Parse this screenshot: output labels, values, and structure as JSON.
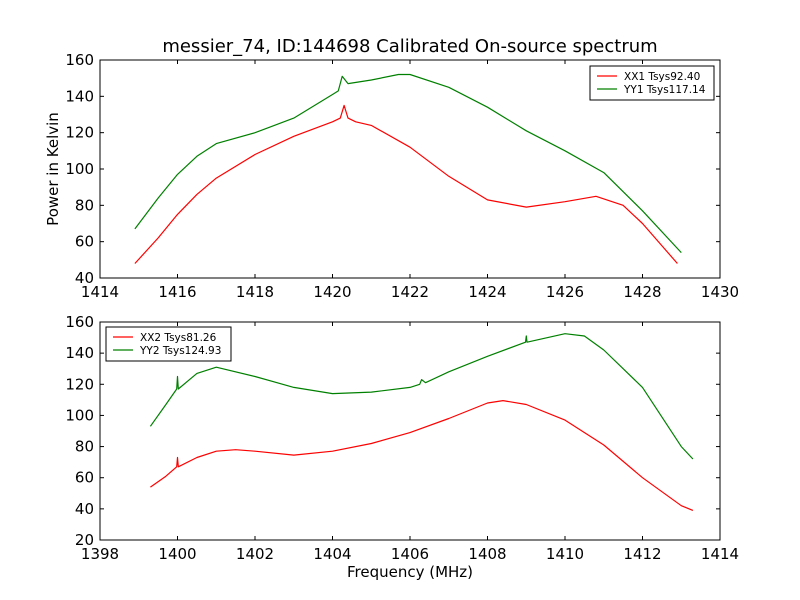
{
  "chart_data": [
    {
      "type": "line",
      "title": "messier_74, ID:144698 Calibrated On-source spectrum",
      "xlabel": "",
      "ylabel": "Power in Kelvin",
      "xlim": [
        1414,
        1430
      ],
      "ylim": [
        40,
        160
      ],
      "xticks": [
        1414,
        1416,
        1418,
        1420,
        1422,
        1424,
        1426,
        1428,
        1430
      ],
      "yticks": [
        40,
        60,
        80,
        100,
        120,
        140,
        160
      ],
      "legend_position": "top-right",
      "series": [
        {
          "name": "XX1 Tsys92.40",
          "color": "#ff0000",
          "x": [
            1414.9,
            1415.5,
            1416,
            1416.5,
            1417,
            1418,
            1419,
            1420,
            1420.2,
            1420.3,
            1420.4,
            1420.6,
            1421,
            1422,
            1423,
            1424,
            1425,
            1426,
            1426.8,
            1427.5,
            1428,
            1428.9
          ],
          "y": [
            48,
            62,
            75,
            86,
            95,
            108,
            118,
            126,
            128,
            135,
            128,
            126,
            124,
            112,
            96,
            83,
            79,
            82,
            85,
            80,
            70,
            48
          ]
        },
        {
          "name": "YY1 Tsys117.14",
          "color": "#008000",
          "x": [
            1414.9,
            1415.5,
            1416,
            1416.5,
            1417,
            1418,
            1419,
            1420,
            1420.15,
            1420.25,
            1420.4,
            1421,
            1421.7,
            1422,
            1423,
            1424,
            1425,
            1426,
            1427,
            1428,
            1429
          ],
          "y": [
            67,
            84,
            97,
            107,
            114,
            120,
            128,
            141,
            143,
            151,
            147,
            149,
            152,
            152,
            145,
            134,
            121,
            110,
            98,
            77,
            54
          ]
        }
      ]
    },
    {
      "type": "line",
      "title": "",
      "xlabel": "Frequency (MHz)",
      "ylabel": "",
      "xlim": [
        1398,
        1414
      ],
      "ylim": [
        20,
        160
      ],
      "xticks": [
        1398,
        1400,
        1402,
        1404,
        1406,
        1408,
        1410,
        1412,
        1414
      ],
      "yticks": [
        20,
        40,
        60,
        80,
        100,
        120,
        140,
        160
      ],
      "legend_position": "top-left",
      "series": [
        {
          "name": "XX2 Tsys81.26",
          "color": "#ff0000",
          "x": [
            1399.3,
            1399.7,
            1399.98,
            1400,
            1400.02,
            1400.5,
            1401,
            1401.5,
            1402,
            1403,
            1404,
            1405,
            1406,
            1407,
            1408,
            1408.4,
            1409,
            1410,
            1411,
            1412,
            1413,
            1413.3
          ],
          "y": [
            54,
            61,
            67,
            73,
            67,
            73,
            77,
            78,
            77,
            74.5,
            77,
            82,
            89,
            98,
            108,
            109.5,
            107,
            97,
            81,
            60,
            42,
            39
          ]
        },
        {
          "name": "YY2 Tsys124.93",
          "color": "#008000",
          "x": [
            1399.3,
            1399.7,
            1399.98,
            1400,
            1400.02,
            1400.5,
            1401,
            1402,
            1403,
            1404,
            1405,
            1406,
            1406.25,
            1406.3,
            1406.4,
            1407,
            1408,
            1408.98,
            1409,
            1409.02,
            1410,
            1410.5,
            1411,
            1412,
            1413,
            1413.3
          ],
          "y": [
            93,
            107,
            117,
            125,
            117,
            127,
            131,
            125,
            118,
            114,
            115,
            118,
            120,
            123,
            121,
            128,
            138,
            147,
            151,
            147,
            152.5,
            151,
            142,
            118,
            80,
            72
          ]
        }
      ]
    }
  ]
}
